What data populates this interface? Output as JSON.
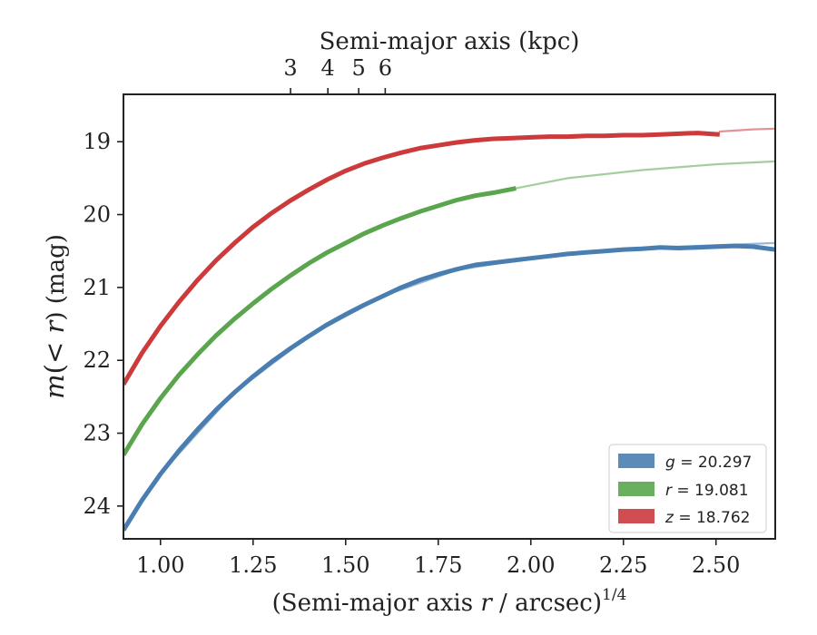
{
  "chart_data": {
    "type": "line",
    "xlabel_main": "(Semi-major axis ",
    "xlabel_var": "r",
    "xlabel_unit": " / arcsec)",
    "xlabel_exp": "1/4",
    "xlabel_top": "Semi-major axis (kpc)",
    "ylabel_pre": "m",
    "ylabel_mid": "(< ",
    "ylabel_var": "r",
    "ylabel_post": ") (mag)",
    "xlim": [
      0.9,
      2.66
    ],
    "ylim": [
      24.45,
      18.35
    ],
    "y_inverted": true,
    "x_ticks": [
      1.0,
      1.25,
      1.5,
      1.75,
      2.0,
      2.25,
      2.5
    ],
    "x_tick_labels": [
      "1.00",
      "1.25",
      "1.50",
      "1.75",
      "2.00",
      "2.25",
      "2.50"
    ],
    "y_ticks": [
      19,
      20,
      21,
      22,
      23,
      24
    ],
    "y_tick_labels": [
      "19",
      "20",
      "21",
      "22",
      "23",
      "24"
    ],
    "top_ticks_kpc": [
      3,
      4,
      5,
      6
    ],
    "top_tick_labels": [
      "3",
      "4",
      "5",
      "6"
    ],
    "kpc_per_arcsec": 0.9,
    "legend_position": "lower-right",
    "series": [
      {
        "name": "g = 20.297",
        "name_var": "g",
        "name_val": " = 20.297",
        "color": "#4a7eb0",
        "x": [
          0.9,
          0.95,
          1.0,
          1.05,
          1.1,
          1.15,
          1.2,
          1.25,
          1.3,
          1.35,
          1.4,
          1.45,
          1.5,
          1.55,
          1.6,
          1.65,
          1.7,
          1.75,
          1.8,
          1.85,
          1.9,
          1.95,
          2.0,
          2.05,
          2.1,
          2.15,
          2.2,
          2.25,
          2.3,
          2.35,
          2.4,
          2.45,
          2.5,
          2.55,
          2.6,
          2.66
        ],
        "y": [
          24.33,
          23.92,
          23.56,
          23.24,
          22.95,
          22.68,
          22.44,
          22.22,
          22.02,
          21.84,
          21.67,
          21.51,
          21.37,
          21.24,
          21.12,
          21.0,
          20.9,
          20.82,
          20.75,
          20.69,
          20.66,
          20.63,
          20.6,
          20.57,
          20.54,
          20.52,
          20.5,
          20.48,
          20.47,
          20.45,
          20.46,
          20.45,
          20.44,
          20.43,
          20.44,
          20.48
        ],
        "model_x": [
          0.9,
          1.0,
          1.2,
          1.4,
          1.6,
          1.8,
          2.0,
          2.2,
          2.4,
          2.66
        ],
        "model_y": [
          24.33,
          23.56,
          22.44,
          21.67,
          21.12,
          20.76,
          20.6,
          20.5,
          20.44,
          20.39
        ]
      },
      {
        "name": "r = 19.081",
        "name_var": "r",
        "name_val": " = 19.081",
        "color": "#5aa54e",
        "x": [
          0.9,
          0.95,
          1.0,
          1.05,
          1.1,
          1.15,
          1.2,
          1.25,
          1.3,
          1.35,
          1.4,
          1.45,
          1.5,
          1.55,
          1.6,
          1.65,
          1.7,
          1.75,
          1.8,
          1.85,
          1.9,
          1.96
        ],
        "y": [
          23.3,
          22.88,
          22.52,
          22.2,
          21.92,
          21.66,
          21.43,
          21.22,
          21.02,
          20.84,
          20.67,
          20.52,
          20.39,
          20.26,
          20.15,
          20.05,
          19.96,
          19.88,
          19.8,
          19.74,
          19.7,
          19.64
        ],
        "model_x": [
          1.96,
          2.1,
          2.3,
          2.5,
          2.66
        ],
        "model_y": [
          19.64,
          19.5,
          19.39,
          19.31,
          19.27
        ]
      },
      {
        "name": "z = 18.762",
        "name_var": "z",
        "name_val": " = 18.762",
        "color": "#cc3a3c",
        "x": [
          0.9,
          0.95,
          1.0,
          1.05,
          1.1,
          1.15,
          1.2,
          1.25,
          1.3,
          1.35,
          1.4,
          1.45,
          1.5,
          1.55,
          1.6,
          1.65,
          1.7,
          1.75,
          1.8,
          1.85,
          1.9,
          1.95,
          2.0,
          2.05,
          2.1,
          2.15,
          2.2,
          2.25,
          2.3,
          2.35,
          2.4,
          2.45,
          2.51
        ],
        "y": [
          22.33,
          21.9,
          21.53,
          21.2,
          20.9,
          20.63,
          20.39,
          20.17,
          19.98,
          19.81,
          19.66,
          19.52,
          19.4,
          19.3,
          19.22,
          19.15,
          19.09,
          19.05,
          19.01,
          18.98,
          18.96,
          18.95,
          18.94,
          18.93,
          18.93,
          18.92,
          18.92,
          18.91,
          18.91,
          18.9,
          18.89,
          18.88,
          18.9
        ],
        "model_x": [
          2.51,
          2.6,
          2.66
        ],
        "model_y": [
          18.86,
          18.83,
          18.82
        ]
      }
    ]
  }
}
